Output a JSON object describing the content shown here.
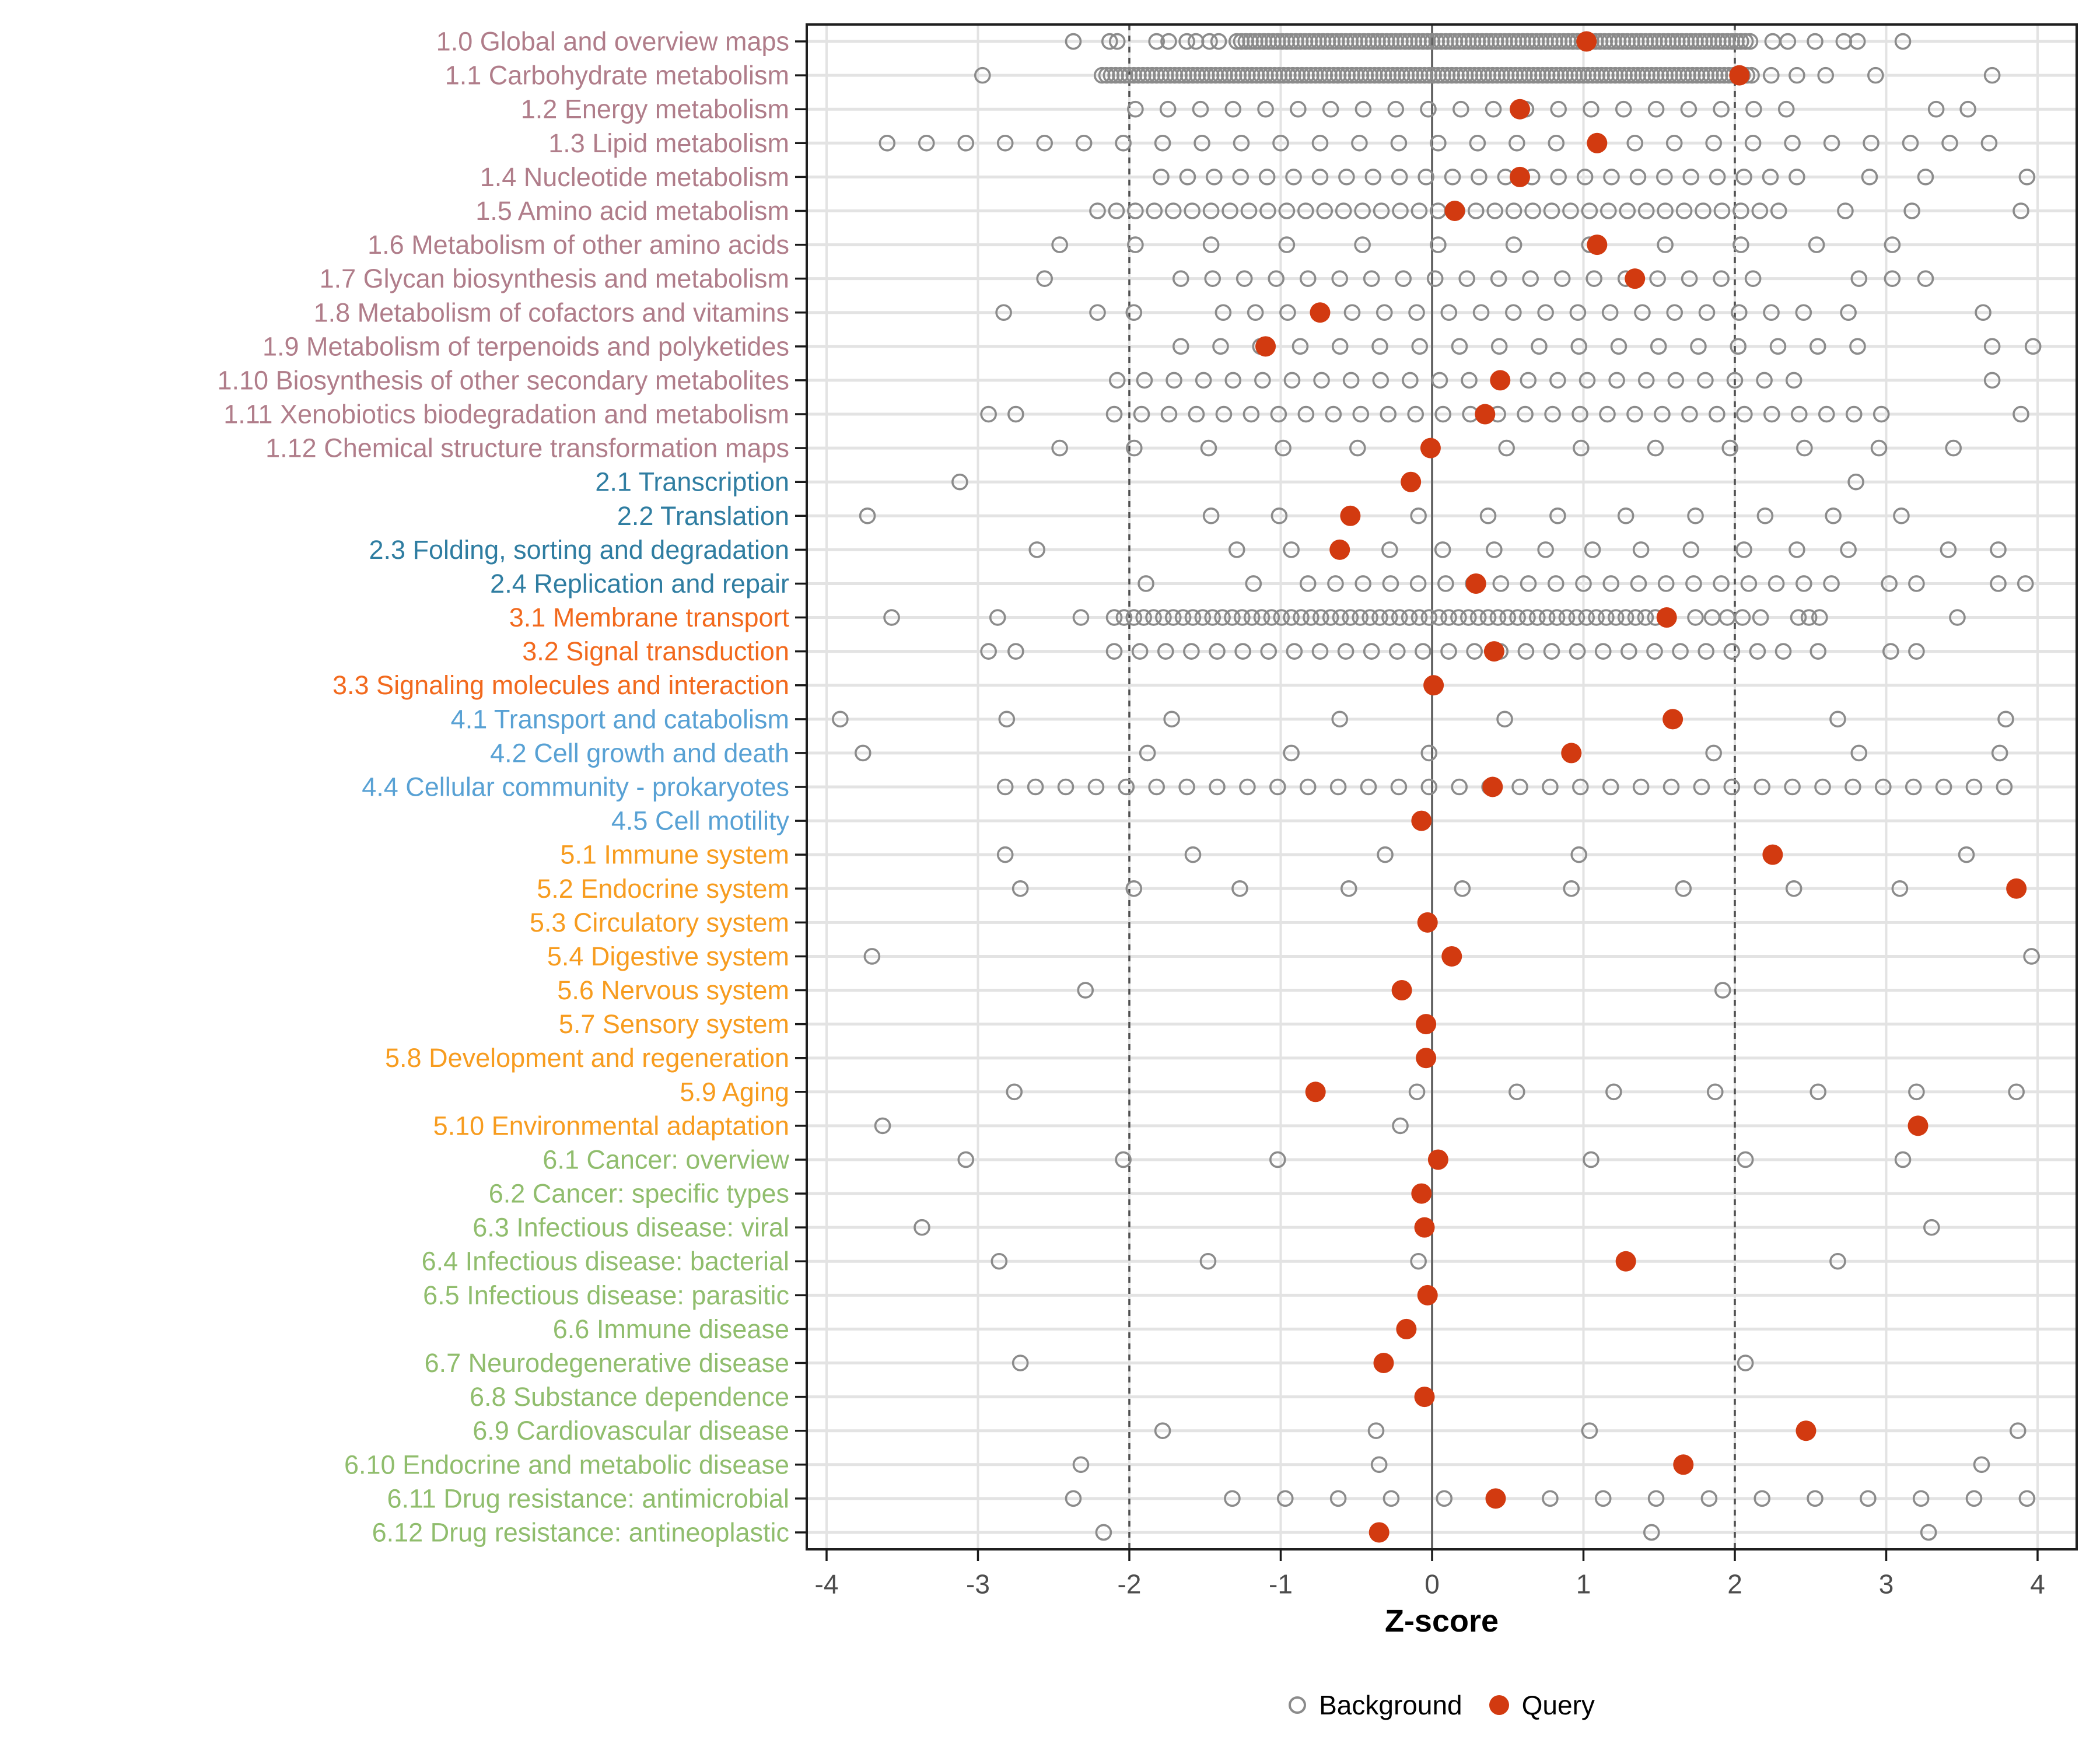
{
  "chart_data": {
    "type": "scatter",
    "xlabel": "Z-score",
    "legend_background": "Background",
    "legend_query": "Query",
    "x_ticks": [
      -4,
      -3,
      -2,
      -1,
      0,
      1,
      2,
      3,
      4
    ],
    "x_range": [
      -4.15,
      4.26
    ],
    "ref_lines": {
      "solid": [
        0
      ],
      "dashed": [
        -2,
        2
      ]
    },
    "grid": true,
    "legend_position": "bottom",
    "group_colors": {
      "1": "#b07d8a",
      "2": "#2f7da1",
      "3": "#f2691d",
      "4": "#58a1d4",
      "5": "#f79c1f",
      "6": "#90bd6d"
    },
    "query_color": "#d23a10",
    "background_stroke": "#8b8b8b",
    "grid_color": "#e3e3e3",
    "zero_line_color": "#5c5c5c",
    "dashed_line_color": "#4f4f4f",
    "axis_text_color": "#4d4d4d",
    "border_color": "#1f1f1f",
    "rows": [
      {
        "id": "1.0",
        "label": "1.0 Global and overview maps",
        "group": "1",
        "query": 1.02,
        "band": [
          -1.29,
          2.12
        ],
        "band_step": 0.03,
        "bg": [
          -2.37,
          -2.13,
          -2.08,
          -1.82,
          -1.74,
          -1.62,
          -1.56,
          -1.47,
          -1.41,
          2.25,
          2.35,
          2.53,
          2.72,
          2.81,
          3.11
        ]
      },
      {
        "id": "1.1",
        "label": "1.1 Carbohydrate metabolism",
        "group": "1",
        "query": 2.03,
        "band": [
          -2.18,
          2.12
        ],
        "band_step": 0.03,
        "bg": [
          -2.97,
          2.24,
          2.41,
          2.6,
          2.93,
          3.7
        ]
      },
      {
        "id": "1.2",
        "label": "1.2 Energy metabolism",
        "group": "1",
        "query": 0.58,
        "seq": [
          -1.96,
          2.47,
          0.215
        ],
        "bg": [
          3.33,
          3.54
        ]
      },
      {
        "id": "1.3",
        "label": "1.3 Lipid metabolism",
        "group": "1",
        "query": 1.09,
        "seq": [
          -3.6,
          3.93,
          0.26
        ],
        "bg": []
      },
      {
        "id": "1.4",
        "label": "1.4 Nucleotide metabolism",
        "group": "1",
        "query": 0.58,
        "seq": [
          -1.79,
          2.56,
          0.175
        ],
        "bg": [
          2.89,
          3.26,
          3.93
        ]
      },
      {
        "id": "1.5",
        "label": "1.5 Amino acid metabolism",
        "group": "1",
        "query": 0.15,
        "seq": [
          -2.21,
          2.36,
          0.125
        ],
        "bg": [
          2.73,
          3.17,
          3.89
        ]
      },
      {
        "id": "1.6",
        "label": "1.6 Metabolism of other amino acids",
        "group": "1",
        "query": 1.09,
        "seq": [
          -2.46,
          3.48,
          0.5
        ],
        "bg": []
      },
      {
        "id": "1.7",
        "label": "1.7 Glycan biosynthesis and metabolism",
        "group": "1",
        "query": 1.34,
        "seq": [
          -1.66,
          2.22,
          0.21
        ],
        "bg": [
          -2.56,
          2.82,
          3.04,
          3.26
        ]
      },
      {
        "id": "1.8",
        "label": "1.8 Metabolism of cofactors and vitamins",
        "group": "1",
        "query": -0.74,
        "seq": [
          -1.38,
          2.62,
          0.213
        ],
        "bg": [
          -2.83,
          -2.21,
          -1.97,
          2.75,
          3.64
        ]
      },
      {
        "id": "1.9",
        "label": "1.9 Metabolism of terpenoids and polyketides",
        "group": "1",
        "query": -1.1,
        "seq": [
          -1.66,
          2.89,
          0.263
        ],
        "bg": [
          3.7,
          3.97
        ]
      },
      {
        "id": "1.10",
        "label": "1.10 Biosynthesis of other secondary metabolites",
        "group": "1",
        "query": 0.45,
        "seq": [
          -1.9,
          2.55,
          0.195
        ],
        "bg": [
          -2.08,
          3.7
        ]
      },
      {
        "id": "1.11",
        "label": "1.11 Xenobiotics biodegradation and metabolism",
        "group": "1",
        "query": 0.35,
        "seq": [
          -2.1,
          3.1,
          0.181
        ],
        "bg": [
          -2.93,
          -2.75,
          3.89
        ]
      },
      {
        "id": "1.12",
        "label": "1.12 Chemical structure transformation maps",
        "group": "1",
        "query": -0.01,
        "seq": [
          -2.46,
          3.45,
          0.492
        ],
        "bg": []
      },
      {
        "id": "2.1",
        "label": "2.1 Transcription",
        "group": "2",
        "query": -0.14,
        "bg": [
          -3.12,
          2.8
        ]
      },
      {
        "id": "2.2",
        "label": "2.2 Translation",
        "group": "2",
        "query": -0.54,
        "bg": [
          -3.73,
          -1.46,
          -1.01,
          -0.09,
          0.37,
          0.83,
          1.28,
          1.74,
          2.2,
          2.65,
          3.1
        ]
      },
      {
        "id": "2.3",
        "label": "2.3 Folding, sorting and degradation",
        "group": "2",
        "query": -0.61,
        "bg": [
          -2.61,
          -1.29,
          -0.93,
          -0.28,
          0.07,
          0.41,
          0.75,
          1.06,
          1.38,
          1.71,
          2.06,
          2.41,
          2.75,
          3.41,
          3.74
        ]
      },
      {
        "id": "2.4",
        "label": "2.4 Replication and repair",
        "group": "2",
        "query": 0.29,
        "seq": [
          -0.82,
          2.7,
          0.182
        ],
        "bg": [
          -1.89,
          -1.18,
          3.02,
          3.2,
          3.74,
          3.92
        ]
      },
      {
        "id": "3.1",
        "label": "3.1 Membrane transport",
        "group": "3",
        "query": 1.55,
        "band": [
          -2.1,
          1.6
        ],
        "band_step": 0.065,
        "bg": [
          -3.57,
          -2.87,
          -2.32,
          1.74,
          1.85,
          1.95,
          2.05,
          2.17,
          2.42,
          2.49,
          2.56,
          3.47
        ]
      },
      {
        "id": "3.2",
        "label": "3.2 Signal transduction",
        "group": "3",
        "query": 0.41,
        "seq": [
          -2.1,
          2.44,
          0.17
        ],
        "bg": [
          -2.93,
          -2.75,
          2.55,
          3.03,
          3.2
        ]
      },
      {
        "id": "3.3",
        "label": "3.3 Signaling molecules and interaction",
        "group": "3",
        "query": 0.01,
        "bg": []
      },
      {
        "id": "4.1",
        "label": "4.1 Transport and catabolism",
        "group": "4",
        "query": 1.59,
        "bg": [
          -3.91,
          -2.81,
          -1.72,
          -0.61,
          0.48,
          2.68,
          3.79
        ]
      },
      {
        "id": "4.2",
        "label": "4.2 Cell growth and death",
        "group": "4",
        "query": 0.92,
        "bg": [
          -3.76,
          -1.88,
          -0.93,
          -0.02,
          1.86,
          2.82,
          3.75
        ]
      },
      {
        "id": "4.4",
        "label": "4.4 Cellular community - prokaryotes",
        "group": "4",
        "query": 0.4,
        "seq": [
          -2.82,
          3.97,
          0.2
        ],
        "bg": []
      },
      {
        "id": "4.5",
        "label": "4.5 Cell motility",
        "group": "4",
        "query": -0.07,
        "bg": []
      },
      {
        "id": "5.1",
        "label": "5.1 Immune system",
        "group": "5",
        "query": 2.25,
        "bg": [
          -2.82,
          -1.58,
          -0.31,
          0.97,
          3.53
        ]
      },
      {
        "id": "5.2",
        "label": "5.2 Endocrine system",
        "group": "5",
        "query": 3.86,
        "bg": [
          -2.72,
          -1.97,
          -1.27,
          -0.55,
          0.2,
          0.92,
          1.66,
          2.39,
          3.09
        ]
      },
      {
        "id": "5.3",
        "label": "5.3 Circulatory system",
        "group": "5",
        "query": -0.03,
        "bg": []
      },
      {
        "id": "5.4",
        "label": "5.4 Digestive system",
        "group": "5",
        "query": 0.13,
        "bg": [
          -3.7,
          3.96
        ]
      },
      {
        "id": "5.6",
        "label": "5.6 Nervous system",
        "group": "5",
        "query": -0.2,
        "bg": [
          -2.29,
          1.92
        ]
      },
      {
        "id": "5.7",
        "label": "5.7 Sensory system",
        "group": "5",
        "query": -0.04,
        "bg": []
      },
      {
        "id": "5.8",
        "label": "5.8 Development and regeneration",
        "group": "5",
        "query": -0.04,
        "bg": []
      },
      {
        "id": "5.9",
        "label": "5.9 Aging",
        "group": "5",
        "query": -0.77,
        "bg": [
          -2.76,
          -0.1,
          0.56,
          1.2,
          1.87,
          2.55,
          3.2,
          3.86
        ]
      },
      {
        "id": "5.10",
        "label": "5.10 Environmental adaptation",
        "group": "5",
        "query": 3.21,
        "bg": [
          -3.63,
          -0.21
        ]
      },
      {
        "id": "6.1",
        "label": "6.1 Cancer: overview",
        "group": "6",
        "query": 0.04,
        "bg": [
          -3.08,
          -2.04,
          -1.02,
          1.05,
          2.07,
          3.11
        ]
      },
      {
        "id": "6.2",
        "label": "6.2 Cancer: specific types",
        "group": "6",
        "query": -0.07,
        "bg": []
      },
      {
        "id": "6.3",
        "label": "6.3 Infectious disease: viral",
        "group": "6",
        "query": -0.05,
        "bg": [
          -3.37,
          3.3
        ]
      },
      {
        "id": "6.4",
        "label": "6.4 Infectious disease: bacterial",
        "group": "6",
        "query": 1.28,
        "bg": [
          -2.86,
          -1.48,
          -0.09,
          2.68
        ]
      },
      {
        "id": "6.5",
        "label": "6.5 Infectious disease: parasitic",
        "group": "6",
        "query": -0.03,
        "bg": []
      },
      {
        "id": "6.6",
        "label": "6.6 Immune disease",
        "group": "6",
        "query": -0.17,
        "bg": []
      },
      {
        "id": "6.7",
        "label": "6.7 Neurodegenerative disease",
        "group": "6",
        "query": -0.32,
        "bg": [
          -2.72,
          2.07
        ]
      },
      {
        "id": "6.8",
        "label": "6.8 Substance dependence",
        "group": "6",
        "query": -0.05,
        "bg": []
      },
      {
        "id": "6.9",
        "label": "6.9 Cardiovascular disease",
        "group": "6",
        "query": 2.47,
        "bg": [
          -1.78,
          -0.37,
          1.04,
          3.87
        ]
      },
      {
        "id": "6.10",
        "label": "6.10 Endocrine and metabolic disease",
        "group": "6",
        "query": 1.66,
        "bg": [
          -2.32,
          -0.35,
          3.63
        ]
      },
      {
        "id": "6.11",
        "label": "6.11 Drug resistance: antimicrobial",
        "group": "6",
        "query": 0.42,
        "seq": [
          -0.97,
          3.93,
          0.35
        ],
        "bg": [
          -2.37,
          -1.32
        ]
      },
      {
        "id": "6.12",
        "label": "6.12 Drug resistance: antineoplastic",
        "group": "6",
        "query": -0.35,
        "bg": [
          -2.17,
          1.45,
          3.28
        ]
      }
    ]
  }
}
